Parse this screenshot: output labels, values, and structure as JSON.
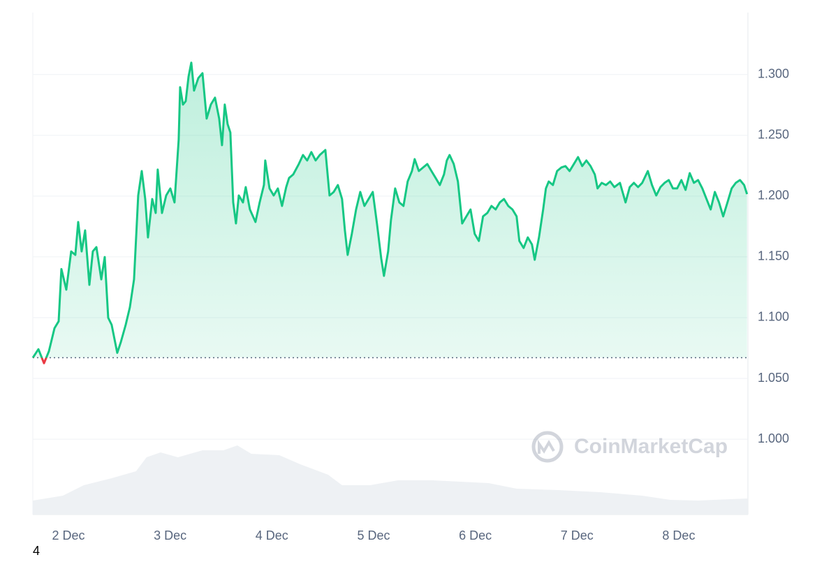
{
  "chart_data": {
    "type": "line",
    "color": "#16c784",
    "below_color": "#ea3943",
    "baseline": 1.067,
    "watermark": "CoinMarketCap",
    "footnote": "4",
    "xlim": [
      1.65,
      8.68
    ],
    "xticks": [
      {
        "value": 2,
        "label": "2 Dec"
      },
      {
        "value": 3,
        "label": "3 Dec"
      },
      {
        "value": 4,
        "label": "4 Dec"
      },
      {
        "value": 5,
        "label": "5 Dec"
      },
      {
        "value": 6,
        "label": "6 Dec"
      },
      {
        "value": 7,
        "label": "7 Dec"
      },
      {
        "value": 8,
        "label": "8 Dec"
      }
    ],
    "ylim": [
      0.938,
      1.351
    ],
    "yticks": [
      {
        "value": 1.0,
        "label": "1.000"
      },
      {
        "value": 1.05,
        "label": "1.050"
      },
      {
        "value": 1.1,
        "label": "1.100"
      },
      {
        "value": 1.15,
        "label": "1.150"
      },
      {
        "value": 1.2,
        "label": "1.200"
      },
      {
        "value": 1.25,
        "label": "1.250"
      },
      {
        "value": 1.3,
        "label": "1.300"
      }
    ],
    "grid": true,
    "x": [
      1.65,
      1.705,
      1.76,
      1.808,
      1.863,
      1.904,
      1.931,
      1.979,
      2.027,
      2.068,
      2.096,
      2.13,
      2.164,
      2.206,
      2.24,
      2.275,
      2.323,
      2.357,
      2.391,
      2.425,
      2.48,
      2.515,
      2.563,
      2.604,
      2.645,
      2.686,
      2.721,
      2.755,
      2.782,
      2.824,
      2.858,
      2.878,
      2.92,
      2.961,
      3.002,
      3.043,
      3.084,
      3.098,
      3.126,
      3.153,
      3.181,
      3.208,
      3.235,
      3.277,
      3.318,
      3.359,
      3.4,
      3.441,
      3.482,
      3.51,
      3.537,
      3.565,
      3.592,
      3.62,
      3.647,
      3.675,
      3.716,
      3.743,
      3.784,
      3.839,
      3.88,
      3.922,
      3.935,
      3.977,
      4.018,
      4.059,
      4.1,
      4.141,
      4.169,
      4.21,
      4.265,
      4.306,
      4.347,
      4.388,
      4.43,
      4.471,
      4.526,
      4.567,
      4.608,
      4.649,
      4.69,
      4.718,
      4.745,
      4.786,
      4.828,
      4.869,
      4.91,
      4.951,
      4.992,
      5.033,
      5.075,
      5.102,
      5.143,
      5.171,
      5.212,
      5.253,
      5.294,
      5.335,
      5.377,
      5.404,
      5.445,
      5.486,
      5.528,
      5.569,
      5.61,
      5.651,
      5.692,
      5.72,
      5.747,
      5.788,
      5.829,
      5.871,
      5.912,
      5.953,
      5.994,
      6.035,
      6.076,
      6.118,
      6.159,
      6.2,
      6.241,
      6.282,
      6.324,
      6.365,
      6.406,
      6.433,
      6.475,
      6.516,
      6.557,
      6.584,
      6.626,
      6.667,
      6.694,
      6.722,
      6.763,
      6.804,
      6.845,
      6.886,
      6.927,
      6.969,
      7.01,
      7.051,
      7.092,
      7.133,
      7.175,
      7.202,
      7.243,
      7.284,
      7.326,
      7.367,
      7.422,
      7.477,
      7.518,
      7.559,
      7.6,
      7.641,
      7.696,
      7.737,
      7.779,
      7.82,
      7.861,
      7.902,
      7.943,
      7.984,
      8.026,
      8.067,
      8.108,
      8.149,
      8.19,
      8.232,
      8.273,
      8.314,
      8.355,
      8.396,
      8.437,
      8.479,
      8.52,
      8.561,
      8.602,
      8.643,
      8.671
    ],
    "values": [
      1.067,
      1.074,
      1.0625,
      1.0723,
      1.0913,
      1.097,
      1.14,
      1.123,
      1.1545,
      1.1516,
      1.1787,
      1.1545,
      1.1718,
      1.127,
      1.1545,
      1.158,
      1.1315,
      1.1499,
      1.0999,
      1.0941,
      1.071,
      1.0798,
      1.0941,
      1.1085,
      1.1315,
      1.2005,
      1.2206,
      1.1976,
      1.166,
      1.1976,
      1.1861,
      1.2218,
      1.1861,
      1.2005,
      1.2063,
      1.1948,
      1.2465,
      1.2896,
      1.2753,
      1.2781,
      1.2983,
      1.3098,
      1.2868,
      1.2971,
      1.3011,
      1.2638,
      1.2753,
      1.281,
      1.2638,
      1.2419,
      1.2753,
      1.2592,
      1.2523,
      1.1948,
      1.1775,
      1.2005,
      1.1948,
      1.2074,
      1.189,
      1.1787,
      1.1948,
      1.2091,
      1.2293,
      1.2063,
      1.2005,
      1.2063,
      1.1919,
      1.2074,
      1.2149,
      1.2178,
      1.2264,
      1.2338,
      1.2293,
      1.2362,
      1.2293,
      1.2338,
      1.2379,
      1.2005,
      1.2034,
      1.2091,
      1.1976,
      1.1718,
      1.1516,
      1.1689,
      1.189,
      1.2034,
      1.1919,
      1.1976,
      1.2034,
      1.1775,
      1.1487,
      1.1344,
      1.1545,
      1.1804,
      1.2063,
      1.1948,
      1.1919,
      1.212,
      1.2206,
      1.2304,
      1.2206,
      1.2235,
      1.2264,
      1.2206,
      1.2149,
      1.2091,
      1.2178,
      1.2293,
      1.2338,
      1.2264,
      1.212,
      1.1775,
      1.1833,
      1.189,
      1.1689,
      1.1631,
      1.1833,
      1.1861,
      1.1919,
      1.189,
      1.1948,
      1.1976,
      1.1919,
      1.189,
      1.1833,
      1.1631,
      1.1573,
      1.166,
      1.1602,
      1.1476,
      1.166,
      1.189,
      1.2063,
      1.212,
      1.2091,
      1.2206,
      1.2235,
      1.2247,
      1.2206,
      1.2264,
      1.2321,
      1.2247,
      1.2293,
      1.2247,
      1.2178,
      1.2063,
      1.2109,
      1.2091,
      1.212,
      1.2074,
      1.2109,
      1.1948,
      1.2074,
      1.2109,
      1.2074,
      1.2109,
      1.2206,
      1.2091,
      1.2005,
      1.2074,
      1.2109,
      1.2132,
      1.2063,
      1.2063,
      1.2132,
      1.2051,
      1.2189,
      1.2109,
      1.2132,
      1.2063,
      1.1976,
      1.189,
      1.2034,
      1.1948,
      1.1833,
      1.1948,
      1.2063,
      1.2109,
      1.2132,
      1.2091,
      1.2016
    ],
    "volume": {
      "color": "#eef1f4",
      "x": [
        1.65,
        1.945,
        2.151,
        2.425,
        2.665,
        2.768,
        2.906,
        3.077,
        3.318,
        3.524,
        3.661,
        3.798,
        4.073,
        4.279,
        4.553,
        4.69,
        4.965,
        5.239,
        5.582,
        6.131,
        6.406,
        6.818,
        7.229,
        7.641,
        7.916,
        8.19,
        8.68
      ],
      "values": [
        20,
        27,
        42,
        52,
        62,
        82,
        89,
        82,
        92,
        92,
        99,
        87,
        85,
        72,
        57,
        42,
        42,
        49,
        49,
        45,
        37,
        35,
        32,
        27,
        21,
        20,
        23
      ]
    }
  }
}
